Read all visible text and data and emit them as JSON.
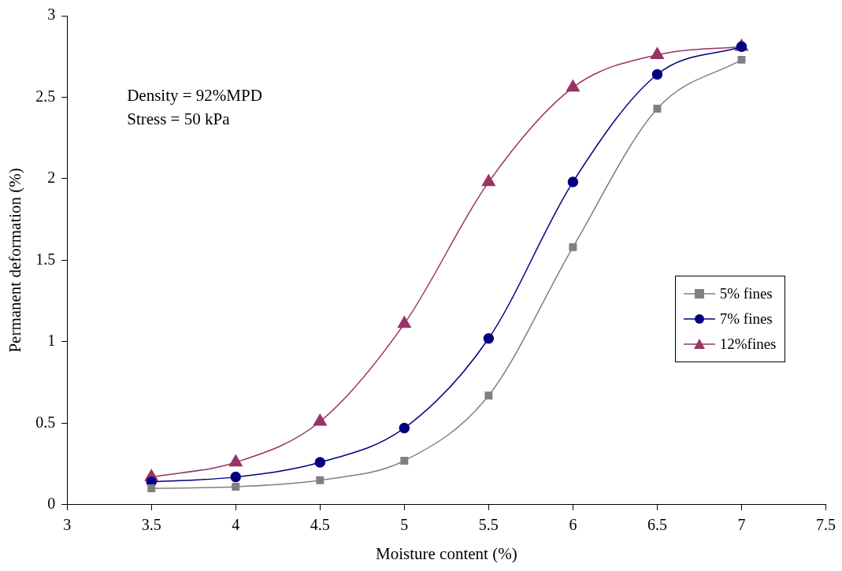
{
  "chart_data": {
    "type": "line",
    "xlabel": "Moisture content (%)",
    "ylabel": "Permanent deformation (%)",
    "x": [
      3.5,
      4,
      4.5,
      5,
      5.5,
      6,
      6.5,
      7
    ],
    "series": [
      {
        "name": "5% fines",
        "color": "#808080",
        "marker": "square",
        "values": [
          0.1,
          0.11,
          0.15,
          0.27,
          0.67,
          1.58,
          2.43,
          2.73
        ]
      },
      {
        "name": "7% fines",
        "color": "#000080",
        "marker": "circle",
        "values": [
          0.14,
          0.17,
          0.26,
          0.47,
          1.02,
          1.98,
          2.64,
          2.81
        ]
      },
      {
        "name": "12%fines",
        "color": "#993366",
        "marker": "triangle",
        "values": [
          0.17,
          0.26,
          0.51,
          1.11,
          1.98,
          2.56,
          2.76,
          2.81
        ]
      }
    ],
    "xlim": [
      3,
      7.5
    ],
    "xticks": [
      3,
      3.5,
      4,
      4.5,
      5,
      5.5,
      6,
      6.5,
      7,
      7.5
    ],
    "ylim": [
      0,
      3
    ],
    "yticks": [
      0,
      0.5,
      1,
      1.5,
      2,
      2.5,
      3
    ],
    "annotations": [
      "Density = 92%MPD",
      "Stress = 50 kPa"
    ],
    "grid": false,
    "legend": "right",
    "line_style": "solid"
  }
}
